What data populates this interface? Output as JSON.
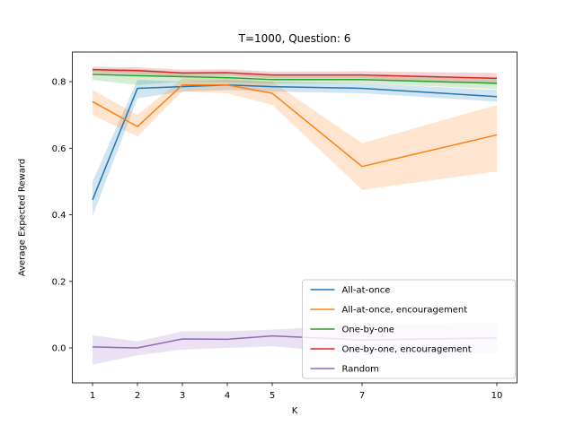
{
  "figure": {
    "title": "T=1000, Question: 6",
    "xlabel": "K",
    "ylabel": "Average Expected Reward"
  },
  "chart_data": {
    "type": "line",
    "title": "T=1000, Question: 6",
    "xlabel": "K",
    "ylabel": "Average Expected Reward",
    "x": [
      1,
      2,
      3,
      4,
      5,
      7,
      10
    ],
    "x_ticks": [
      "1",
      "2",
      "3",
      "4",
      "5",
      "7",
      "10"
    ],
    "y_ticks": [
      0.0,
      0.2,
      0.4,
      0.6,
      0.8
    ],
    "y_tick_labels": [
      "0.0",
      "0.2",
      "0.4",
      "0.6",
      "0.8"
    ],
    "xlim": [
      0.55,
      10.45
    ],
    "ylim": [
      -0.105,
      0.889
    ],
    "grid": false,
    "legend_position": "lower right",
    "band_alpha": 0.2,
    "axis_color": "#000000",
    "legend_edge_color": "#cccccc",
    "series": [
      {
        "name": "All-at-once",
        "color": "#1f77b4",
        "values": [
          0.445,
          0.78,
          0.785,
          0.79,
          0.785,
          0.78,
          0.755
        ],
        "band_low": [
          0.395,
          0.75,
          0.77,
          0.775,
          0.77,
          0.765,
          0.74
        ],
        "band_high": [
          0.5,
          0.805,
          0.8,
          0.805,
          0.8,
          0.795,
          0.775
        ]
      },
      {
        "name": "All-at-once, encouragement",
        "color": "#ff7f0e",
        "values": [
          0.74,
          0.665,
          0.79,
          0.79,
          0.765,
          0.545,
          0.64
        ],
        "band_low": [
          0.7,
          0.635,
          0.77,
          0.765,
          0.73,
          0.475,
          0.53
        ],
        "band_high": [
          0.775,
          0.7,
          0.81,
          0.81,
          0.8,
          0.615,
          0.73
        ]
      },
      {
        "name": "One-by-one",
        "color": "#2ca02c",
        "values": [
          0.822,
          0.818,
          0.815,
          0.812,
          0.806,
          0.806,
          0.795
        ],
        "band_low": [
          0.805,
          0.79,
          0.8,
          0.798,
          0.794,
          0.795,
          0.778
        ],
        "band_high": [
          0.838,
          0.838,
          0.828,
          0.824,
          0.818,
          0.818,
          0.812
        ]
      },
      {
        "name": "One-by-one, encouragement",
        "color": "#d62728",
        "values": [
          0.836,
          0.833,
          0.826,
          0.827,
          0.82,
          0.82,
          0.81
        ],
        "band_low": [
          0.827,
          0.822,
          0.816,
          0.818,
          0.81,
          0.81,
          0.792
        ],
        "band_high": [
          0.845,
          0.843,
          0.836,
          0.837,
          0.83,
          0.831,
          0.826
        ]
      },
      {
        "name": "Random",
        "color": "#9467bd",
        "values": [
          0.003,
          0.0,
          0.027,
          0.026,
          0.036,
          0.024,
          0.03
        ],
        "band_low": [
          -0.05,
          -0.022,
          -0.005,
          0.0,
          0.005,
          -0.02,
          -0.015
        ],
        "band_high": [
          0.038,
          0.02,
          0.05,
          0.05,
          0.055,
          0.07,
          0.075
        ]
      }
    ]
  }
}
